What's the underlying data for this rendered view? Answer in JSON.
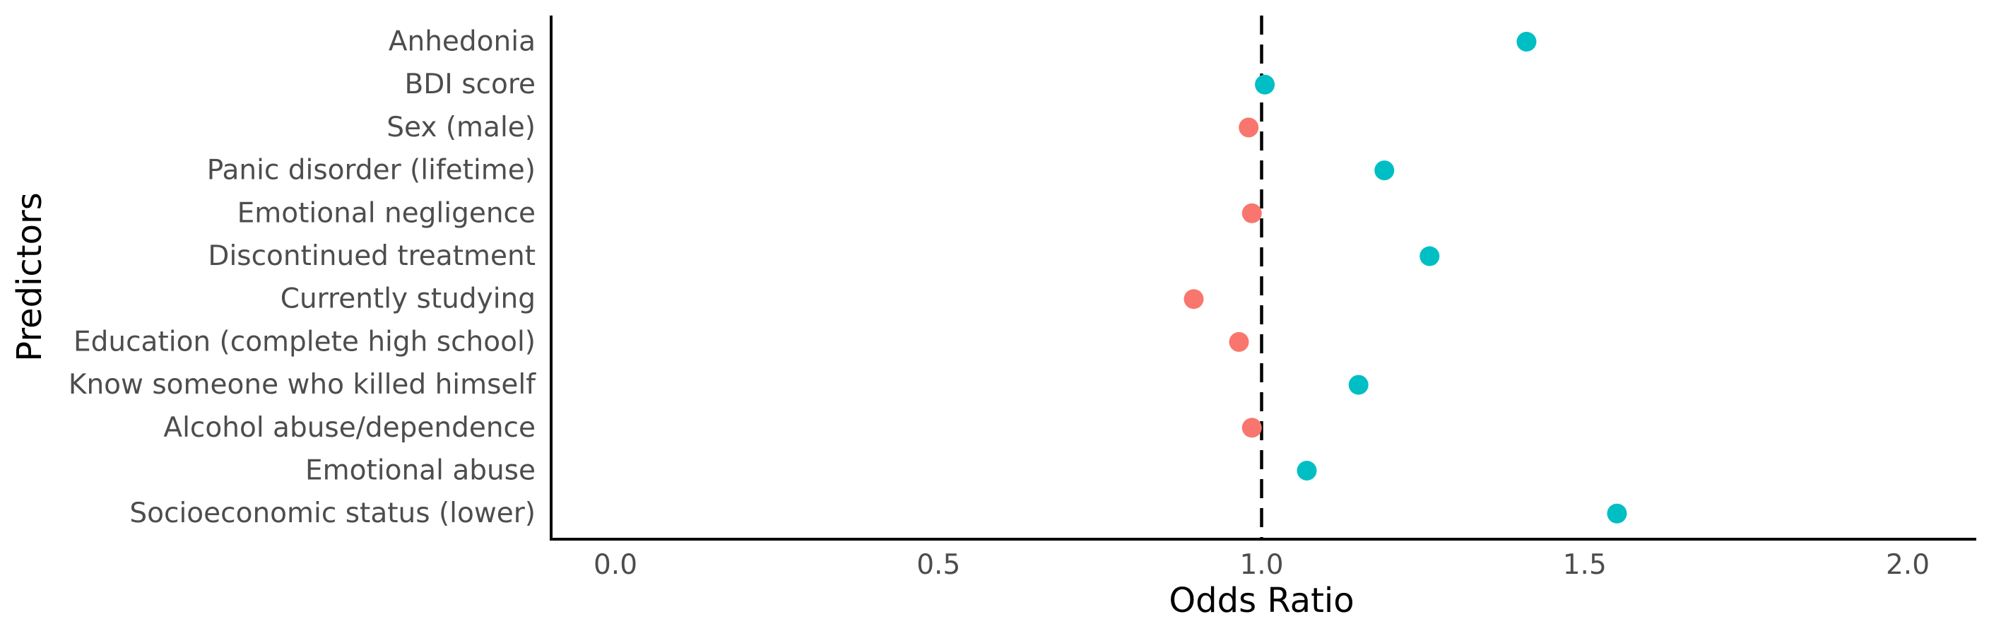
{
  "chart_data": {
    "type": "scatter",
    "xlabel": "Odds Ratio",
    "ylabel": "Predictors",
    "xlim": [
      -0.1,
      2.1
    ],
    "x_ticks": [
      0.0,
      0.5,
      1.0,
      1.5,
      2.0
    ],
    "x_tick_labels": [
      "0.0",
      "0.5",
      "1.0",
      "1.5",
      "2.0"
    ],
    "reference_line": {
      "x": 1.0,
      "style": "dashed",
      "color": "#000000"
    },
    "grid": false,
    "legend": "none",
    "colors": {
      "above_one": "#00BFC4",
      "below_one": "#F8766D"
    },
    "points": [
      {
        "label": "Anhedonia",
        "value": 1.41
      },
      {
        "label": "BDI score",
        "value": 1.005
      },
      {
        "label": "Sex (male)",
        "value": 0.98
      },
      {
        "label": "Panic disorder (lifetime)",
        "value": 1.19
      },
      {
        "label": "Emotional negligence",
        "value": 0.985
      },
      {
        "label": "Discontinued treatment",
        "value": 1.26
      },
      {
        "label": "Currently studying",
        "value": 0.895
      },
      {
        "label": "Education (complete high school)",
        "value": 0.965
      },
      {
        "label": "Know someone who killed himself",
        "value": 1.15
      },
      {
        "label": "Alcohol abuse/dependence",
        "value": 0.985
      },
      {
        "label": "Emotional abuse",
        "value": 1.07
      },
      {
        "label": "Socioeconomic status (lower)",
        "value": 1.55
      }
    ]
  }
}
